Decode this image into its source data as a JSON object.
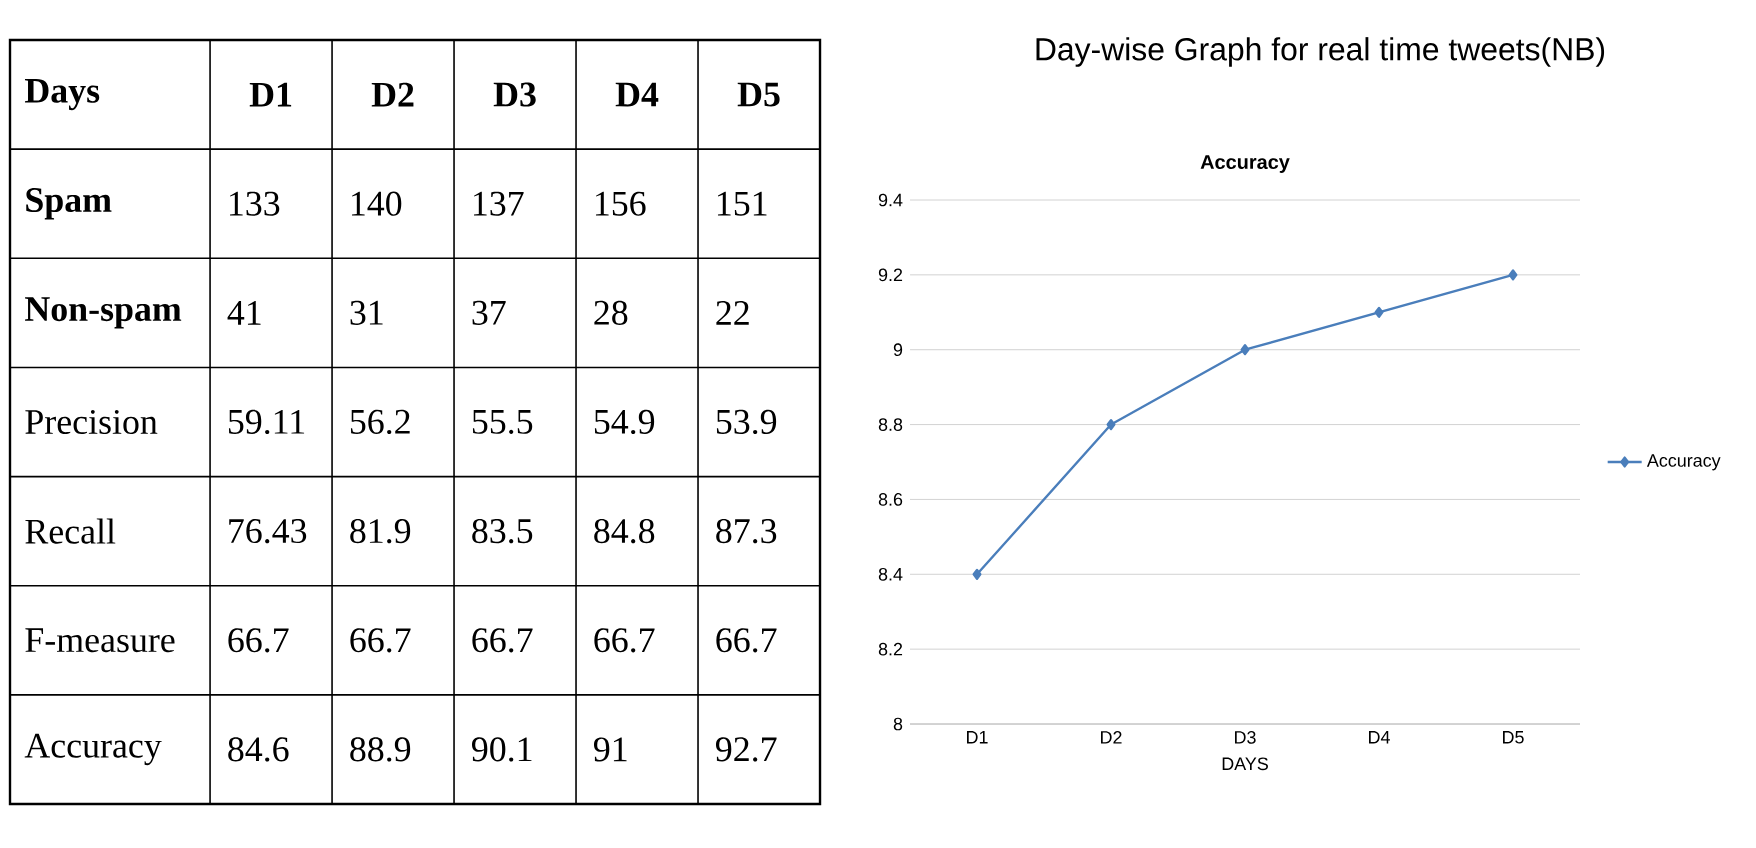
{
  "chart_data": [
    {
      "type": "heatmap",
      "ylabel": "Days",
      "categories": [
        "D1",
        "D2",
        "D3",
        "D4",
        "D5"
      ],
      "y_categories": [
        "Spam",
        "Non-spam",
        "Precision",
        "Recall",
        "F-measure",
        "Accuracy"
      ],
      "cells": [
        [
          133,
          140,
          137,
          156,
          151
        ],
        [
          41,
          31,
          37,
          28,
          22
        ],
        [
          59.11,
          56.2,
          55.5,
          54.9,
          53.9
        ],
        [
          76.43,
          81.9,
          83.5,
          84.8,
          87.3
        ],
        [
          66.7,
          66.7,
          66.7,
          66.7,
          66.7
        ],
        [
          84.6,
          88.9,
          90.1,
          91,
          92.7
        ]
      ],
      "data_labels": true
    },
    {
      "type": "line",
      "title": "Day-wise Graph for real time tweets(NB)",
      "subtitle": "Accuracy",
      "xlabel": "DAYS",
      "categories": [
        "D1",
        "D2",
        "D3",
        "D4",
        "D5"
      ],
      "series": [
        {
          "name": "Accuracy",
          "color": "#4a7ebb",
          "values": [
            8.4,
            8.8,
            9.0,
            9.1,
            9.2
          ]
        }
      ],
      "ylim": [
        8,
        9.4
      ],
      "yticks": [
        8,
        8.2,
        8.4,
        8.6,
        8.8,
        9,
        9.2,
        9.4
      ],
      "grid": "y",
      "legend": "right",
      "marker": "diamond",
      "line_style": "solid"
    }
  ]
}
